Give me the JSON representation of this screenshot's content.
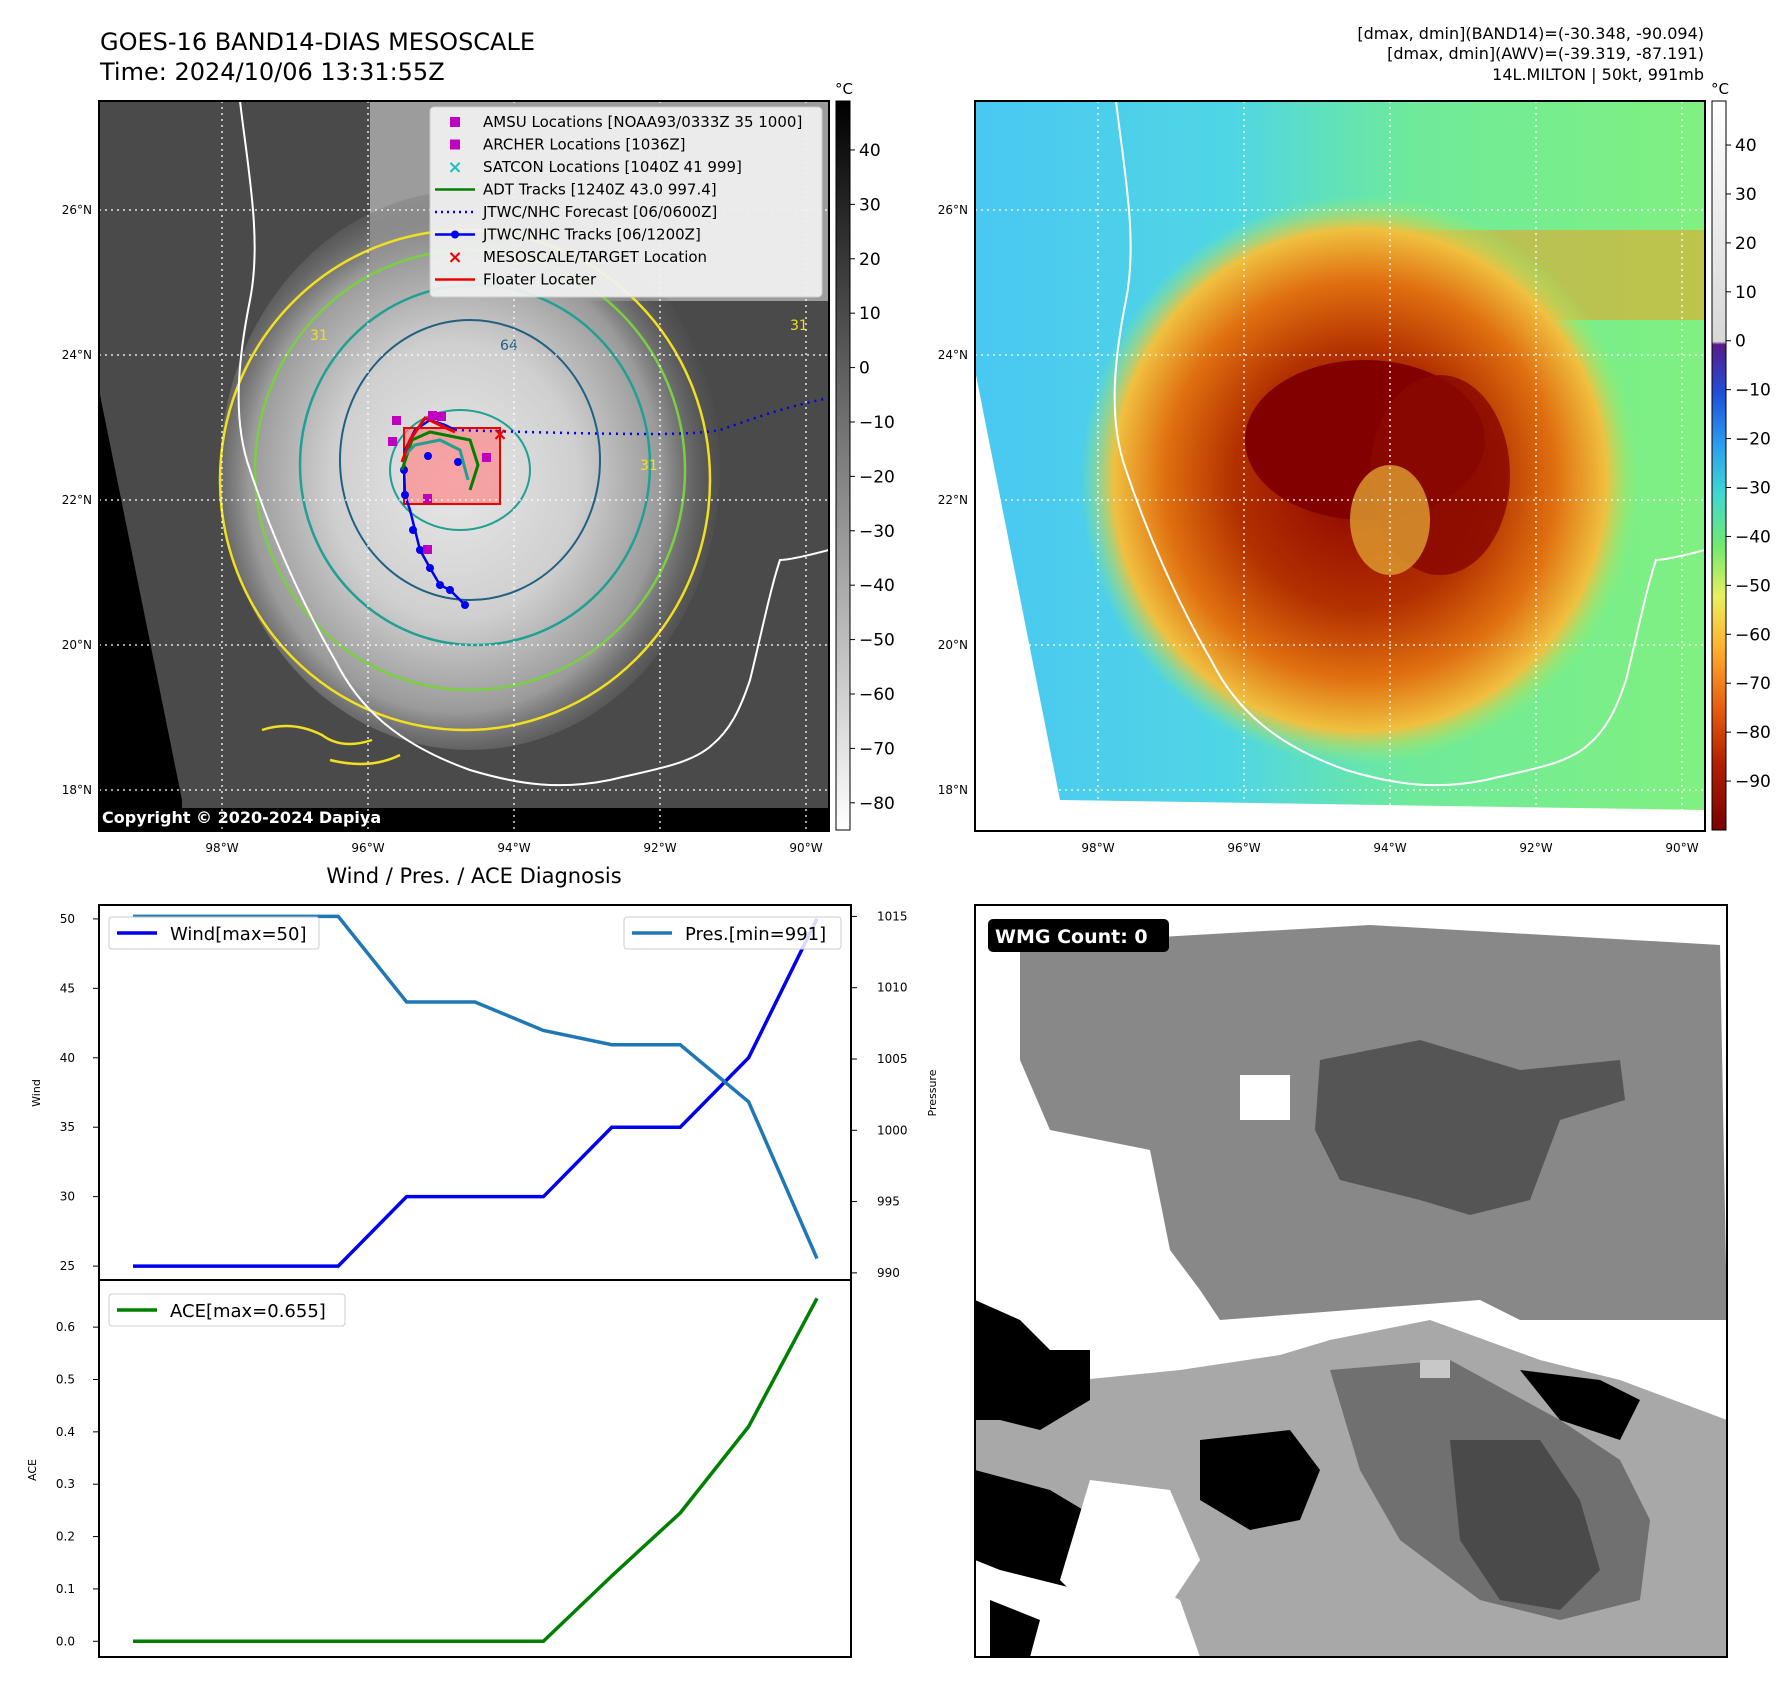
{
  "header": {
    "title_line1": "GOES-16 BAND14-DIAS MESOSCALE",
    "title_line2": "Time: 2024/10/06 13:31:55Z",
    "info_line1": "[dmax, dmin](BAND14)=(-30.348, -90.094)",
    "info_line2": "[dmax, dmin](AWV)=(-39.319, -87.191)",
    "info_line3": "14L.MILTON | 50kt, 991mb"
  },
  "map": {
    "lat_labels": [
      "26°N",
      "24°N",
      "22°N",
      "20°N",
      "18°N"
    ],
    "lon_labels": [
      "98°W",
      "96°W",
      "94°W",
      "92°W",
      "90°W"
    ],
    "copyright": "Copyright © 2020-2024 Dapiya",
    "contour_labels": [
      "64",
      "31",
      "31",
      "31"
    ]
  },
  "legend": {
    "items": [
      {
        "label": "AMSU Locations [NOAA93/0333Z 35 1000]",
        "marker": "square",
        "color": "#c000c0"
      },
      {
        "label": "ARCHER Locations [1036Z]",
        "marker": "square",
        "color": "#c000c0"
      },
      {
        "label": "SATCON Locations [1040Z 41 999]",
        "marker": "x",
        "color": "#20c0c0"
      },
      {
        "label": "ADT Tracks [1240Z 43.0 997.4]",
        "marker": "line",
        "color": "#008000"
      },
      {
        "label": "JTWC/NHC Forecast [06/0600Z]",
        "marker": "dotted",
        "color": "#0000ee"
      },
      {
        "label": "JTWC/NHC Tracks [06/1200Z]",
        "marker": "line-dot",
        "color": "#0000ee"
      },
      {
        "label": "MESOSCALE/TARGET Location",
        "marker": "x",
        "color": "#ee0000"
      },
      {
        "label": "Floater Locater",
        "marker": "line",
        "color": "#ee0000"
      }
    ]
  },
  "colorbar_gray": {
    "unit": "°C",
    "ticks": [
      "40",
      "30",
      "20",
      "10",
      "0",
      "−10",
      "−20",
      "−30",
      "−40",
      "−50",
      "−60",
      "−70",
      "−80"
    ]
  },
  "colorbar_color": {
    "unit": "°C",
    "ticks": [
      "40",
      "30",
      "20",
      "10",
      "0",
      "−10",
      "−20",
      "−30",
      "−40",
      "−50",
      "−60",
      "−70",
      "−80",
      "−90"
    ]
  },
  "wmg": {
    "badge": "WMG Count: 0"
  },
  "colors": {
    "wind": "#0000ee",
    "pressure": "#1f77b4",
    "ace": "#008000",
    "contour_yellow": "#f0e020",
    "contour_green": "#7ad040",
    "contour_teal": "#20a090",
    "contour_blue": "#206080"
  },
  "chart_data": [
    {
      "type": "line",
      "title": "Wind / Pres. / ACE Diagnosis",
      "ylabel": "Wind",
      "ylim": [
        24,
        51
      ],
      "y_ticks": [
        "25",
        "30",
        "35",
        "40",
        "45",
        "50"
      ],
      "series": [
        {
          "name": "Wind[max=50]",
          "axis": "left",
          "values": [
            25,
            25,
            25,
            25,
            30,
            30,
            30,
            35,
            35,
            40,
            50
          ]
        }
      ]
    },
    {
      "type": "line",
      "ylabel": "Pressure",
      "ylim": [
        989.5,
        1015.8
      ],
      "y_ticks": [
        "990",
        "995",
        "1000",
        "1005",
        "1010",
        "1015"
      ],
      "series": [
        {
          "name": "Pres.[min=991]",
          "axis": "right",
          "values": [
            1015,
            1015,
            1015,
            1015,
            1009,
            1009,
            1007,
            1006,
            1006,
            1002,
            991
          ]
        }
      ]
    },
    {
      "type": "line",
      "ylabel": "ACE",
      "ylim": [
        -0.03,
        0.69
      ],
      "y_ticks": [
        "0.0",
        "0.1",
        "0.2",
        "0.3",
        "0.4",
        "0.5",
        "0.6"
      ],
      "series": [
        {
          "name": "ACE[max=0.655]",
          "values": [
            0,
            0,
            0,
            0,
            0,
            0,
            0,
            0.125,
            0.245,
            0.41,
            0.655
          ]
        }
      ]
    }
  ]
}
